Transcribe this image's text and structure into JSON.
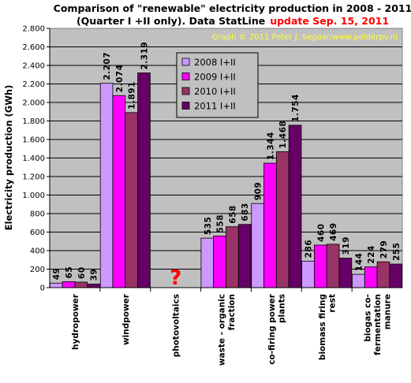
{
  "chart_data": {
    "type": "bar",
    "title_line1": "Comparison of \"renewable\" electricity production in 2008 - 2011",
    "title_line2_black": "(Quarter I +II only). Data StatLine",
    "title_line2_red": "update Sep. 15, 2011",
    "credit": "Graph © 2011 Peter J. Segaar/www.polderpv.nl",
    "ylabel": "Electricity production (GWh)",
    "ylim": [
      0,
      2800
    ],
    "yticks": [
      0,
      200,
      400,
      600,
      800,
      1000,
      1200,
      1400,
      1600,
      1800,
      2000,
      2200,
      2400,
      2600,
      2800
    ],
    "ytick_labels": [
      "0",
      "200",
      "400",
      "600",
      "800",
      "1.000",
      "1.200",
      "1.400",
      "1.600",
      "1.800",
      "2.000",
      "2.200",
      "2.400",
      "2.600",
      "2.800"
    ],
    "categories": [
      [
        "hydropower"
      ],
      [
        "windpower"
      ],
      [
        "photovoltaics"
      ],
      [
        "waste - organic",
        "fraction"
      ],
      [
        "co-firing power",
        "plants"
      ],
      [
        "biomass firing",
        "rest"
      ],
      [
        "biogas co-",
        "fermentation",
        "manure"
      ]
    ],
    "missing_marker": "?",
    "missing_category_index": 2,
    "series": [
      {
        "name": "2008 I+II",
        "color": "#cc99ff",
        "values": [
          49,
          2207,
          null,
          535,
          909,
          286,
          144
        ],
        "labels": [
          "49",
          "2.207",
          "",
          "535",
          "909",
          "286",
          "144"
        ]
      },
      {
        "name": "2009 I+II",
        "color": "#ff00ff",
        "values": [
          65,
          2074,
          null,
          558,
          1344,
          460,
          224
        ],
        "labels": [
          "65",
          "2.074",
          "",
          "558",
          "1.344",
          "460",
          "224"
        ]
      },
      {
        "name": "2010 I+II",
        "color": "#993366",
        "values": [
          60,
          1891,
          null,
          658,
          1468,
          469,
          279
        ],
        "labels": [
          "60",
          "1.891",
          "",
          "658",
          "1.468",
          "469",
          "279"
        ]
      },
      {
        "name": "2011 I+II",
        "color": "#660066",
        "values": [
          39,
          2319,
          null,
          683,
          1754,
          319,
          255
        ],
        "labels": [
          "39",
          "2.319",
          "",
          "683",
          "1.754",
          "319",
          "255"
        ]
      }
    ],
    "legend_position": "upper-center",
    "grid": true,
    "plot_background": "#c0c0c0"
  }
}
